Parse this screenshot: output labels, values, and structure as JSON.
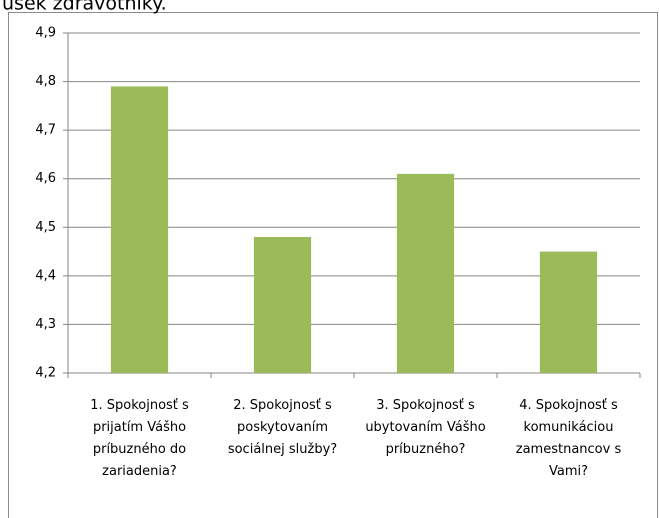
{
  "caption": "úsek zdravotníky.",
  "chart_data": {
    "type": "bar",
    "categories": [
      "1. Spokojnosť s prijatím Vášho príbuzného do zariadenia?",
      "2. Spokojnosť s poskytovaním sociálnej služby?",
      "3. Spokojnosť s ubytovaním Vášho príbuzného?",
      "4. Spokojnosť s komunikáciou zamestnancov s Vami?"
    ],
    "values": [
      4.79,
      4.48,
      4.61,
      4.45
    ],
    "color": "#9bbb59",
    "ylim": [
      4.2,
      4.9
    ],
    "yticks": [
      {
        "value": 4.2,
        "label": "4,2"
      },
      {
        "value": 4.3,
        "label": "4,3"
      },
      {
        "value": 4.4,
        "label": "4,4"
      },
      {
        "value": 4.5,
        "label": "4,5"
      },
      {
        "value": 4.6,
        "label": "4,6"
      },
      {
        "value": 4.7,
        "label": "4,7"
      },
      {
        "value": 4.8,
        "label": "4,8"
      },
      {
        "value": 4.9,
        "label": "4,9"
      }
    ],
    "grid": true
  }
}
